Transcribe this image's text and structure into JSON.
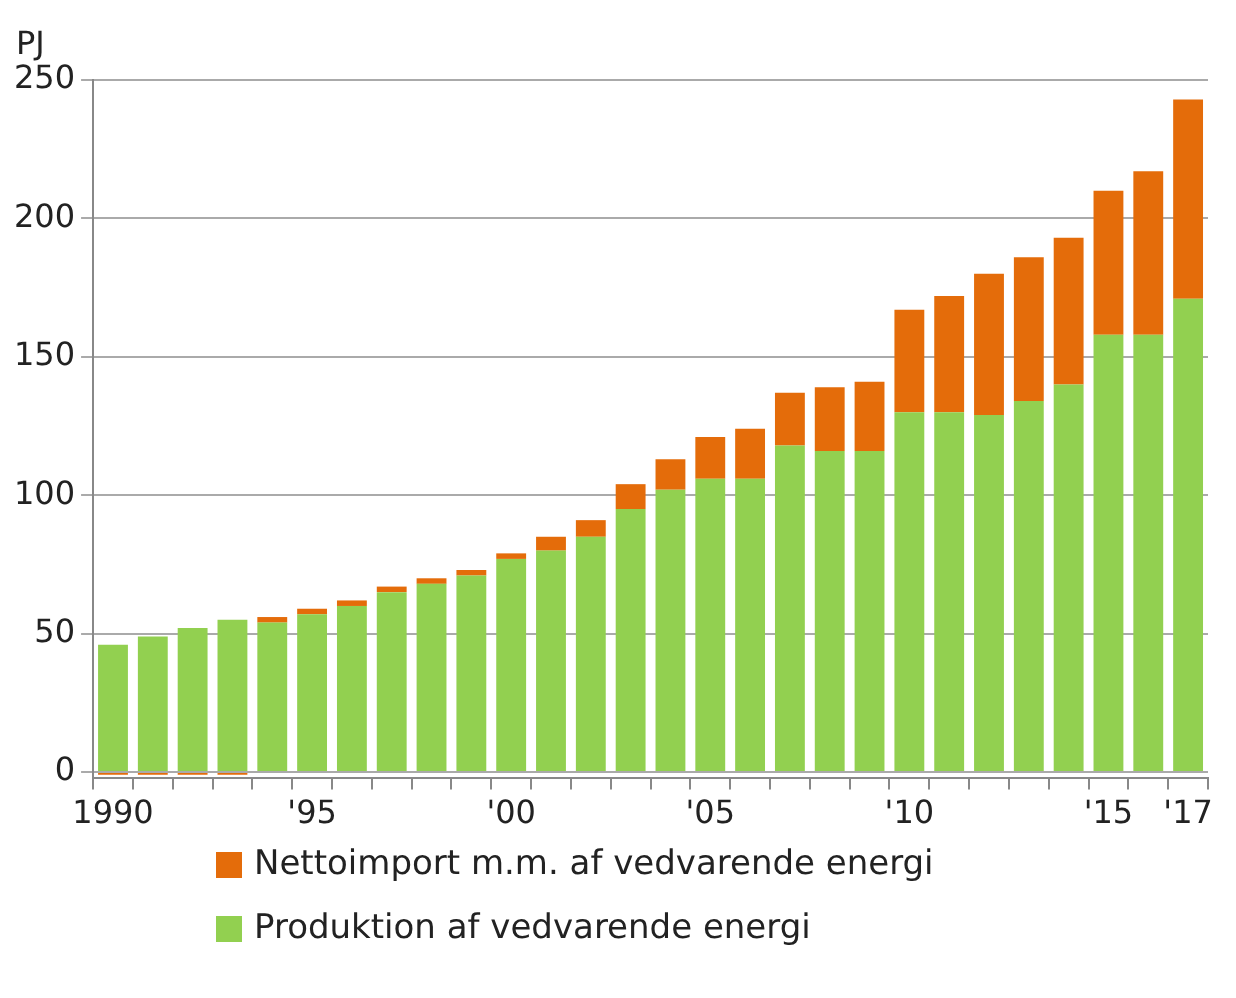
{
  "chart_data": {
    "type": "bar",
    "ylabel": "PJ",
    "stacked": true,
    "grid": "y",
    "legend": "bottom",
    "categories": [
      "1990",
      null,
      null,
      null,
      null,
      "'95",
      null,
      null,
      null,
      null,
      "'00",
      null,
      null,
      null,
      null,
      "'05",
      null,
      null,
      null,
      null,
      "'10",
      null,
      null,
      null,
      null,
      "'15",
      null,
      "'17"
    ],
    "ylim": [
      -2,
      250
    ],
    "yticks": [
      0,
      50,
      100,
      150,
      200,
      250
    ],
    "series": [
      {
        "name": "Produktion af vedvarende energi",
        "color": "#92d050",
        "values": [
          46,
          49,
          52,
          55,
          54,
          57,
          60,
          65,
          68,
          71,
          77,
          80,
          85,
          95,
          102,
          106,
          106,
          118,
          116,
          116,
          130,
          130,
          129,
          134,
          140,
          158,
          158,
          171
        ]
      },
      {
        "name": "Nettoimport m.m. af vedvarende energi",
        "color": "#e46c0a",
        "values": [
          -1,
          -1,
          -1,
          -1,
          2,
          2,
          2,
          2,
          2,
          2,
          2,
          5,
          6,
          9,
          11,
          15,
          18,
          19,
          23,
          25,
          37,
          42,
          51,
          52,
          53,
          52,
          59,
          72
        ]
      }
    ]
  }
}
